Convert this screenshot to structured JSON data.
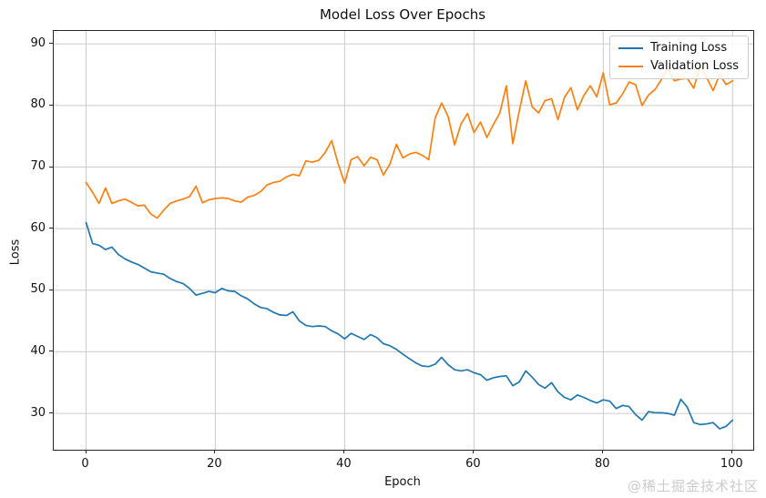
{
  "watermark": "@稀土掘金技术社区",
  "chart_data": {
    "type": "line",
    "title": "Model Loss Over Epochs",
    "xlabel": "Epoch",
    "ylabel": "Loss",
    "x_ticks": [
      0,
      20,
      40,
      60,
      80,
      100
    ],
    "y_ticks": [
      30,
      40,
      50,
      60,
      70,
      80,
      90
    ],
    "xlim": [
      -5,
      103.2
    ],
    "ylim": [
      24.1,
      92.1
    ],
    "grid": true,
    "grid_color": "#cccccc",
    "legend_position": "upper right",
    "epochs": [
      0,
      1,
      2,
      3,
      4,
      5,
      6,
      7,
      8,
      9,
      10,
      11,
      12,
      13,
      14,
      15,
      16,
      17,
      18,
      19,
      20,
      21,
      22,
      23,
      24,
      25,
      26,
      27,
      28,
      29,
      30,
      31,
      32,
      33,
      34,
      35,
      36,
      37,
      38,
      39,
      40,
      41,
      42,
      43,
      44,
      45,
      46,
      47,
      48,
      49,
      50,
      51,
      52,
      53,
      54,
      55,
      56,
      57,
      58,
      59,
      60,
      61,
      62,
      63,
      64,
      65,
      66,
      67,
      68,
      69,
      70,
      71,
      72,
      73,
      74,
      75,
      76,
      77,
      78,
      79,
      80,
      81,
      82,
      83,
      84,
      85,
      86,
      87,
      88,
      89,
      90,
      91,
      92,
      93,
      94,
      95,
      96,
      97,
      98,
      99,
      100
    ],
    "series": [
      {
        "name": "Training Loss",
        "color": "#1f77b4",
        "values": [
          61.0,
          57.6,
          57.3,
          56.6,
          57.0,
          55.8,
          55.1,
          54.6,
          54.2,
          53.6,
          53.0,
          52.8,
          52.6,
          51.9,
          51.4,
          51.1,
          50.3,
          49.2,
          49.5,
          49.8,
          49.6,
          50.3,
          49.9,
          49.8,
          49.1,
          48.6,
          47.8,
          47.2,
          47.0,
          46.4,
          46.0,
          45.9,
          46.5,
          45.0,
          44.3,
          44.1,
          44.2,
          44.1,
          43.4,
          42.9,
          42.1,
          43.0,
          42.5,
          42.0,
          42.8,
          42.3,
          41.3,
          41.0,
          40.4,
          39.6,
          38.9,
          38.2,
          37.7,
          37.6,
          38.0,
          39.1,
          37.9,
          37.1,
          36.9,
          37.1,
          36.6,
          36.3,
          35.4,
          35.8,
          36.0,
          36.1,
          34.5,
          35.1,
          36.9,
          35.9,
          34.7,
          34.1,
          35.0,
          33.5,
          32.6,
          32.2,
          33.0,
          32.6,
          32.1,
          31.7,
          32.2,
          32.0,
          30.8,
          31.3,
          31.1,
          29.8,
          28.9,
          30.3,
          30.1,
          30.1,
          30.0,
          29.7,
          32.3,
          31.0,
          28.5,
          28.2,
          28.3,
          28.5,
          27.5,
          27.9,
          28.9
        ]
      },
      {
        "name": "Validation Loss",
        "color": "#ff7f0e",
        "values": [
          67.5,
          65.9,
          64.1,
          66.6,
          64.1,
          64.5,
          64.8,
          64.3,
          63.7,
          63.8,
          62.4,
          61.7,
          63.0,
          64.1,
          64.5,
          64.8,
          65.2,
          66.9,
          64.2,
          64.7,
          64.9,
          65.0,
          64.9,
          64.5,
          64.3,
          65.1,
          65.4,
          66.0,
          67.1,
          67.5,
          67.7,
          68.4,
          68.8,
          68.6,
          71.0,
          70.8,
          71.1,
          72.4,
          74.3,
          70.5,
          67.4,
          71.2,
          71.7,
          70.2,
          71.6,
          71.2,
          68.7,
          70.5,
          73.7,
          71.5,
          72.1,
          72.4,
          71.9,
          71.2,
          78.0,
          80.4,
          78.2,
          73.6,
          77.0,
          78.7,
          75.6,
          77.3,
          74.8,
          76.9,
          78.8,
          83.2,
          73.8,
          79.1,
          84.0,
          79.8,
          78.8,
          80.8,
          81.1,
          77.7,
          81.3,
          82.9,
          79.3,
          81.6,
          83.2,
          81.4,
          85.3,
          80.1,
          80.4,
          81.9,
          83.8,
          83.4,
          80.0,
          81.7,
          82.6,
          84.2,
          86.0,
          84.0,
          84.3,
          84.4,
          82.8,
          86.5,
          84.5,
          82.4,
          85.0,
          83.4,
          84.0
        ]
      }
    ]
  }
}
